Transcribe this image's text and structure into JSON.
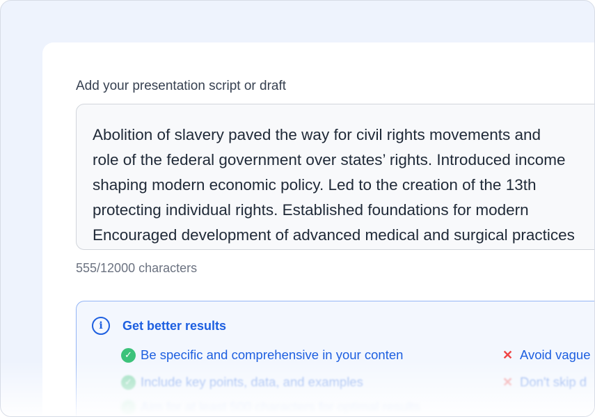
{
  "form": {
    "label": "Add your presentation script or draft",
    "script_value": "Abolition of slavery paved the way for civil rights movements and\nrole of the federal government over states’ rights. Introduced income\nshaping modern economic policy. Led to the creation of the 13th\nprotecting individual rights. Established foundations for modern\nEncouraged development of advanced medical and surgical practices",
    "char_count": "555/12000 characters"
  },
  "tips": {
    "title": "Get better results",
    "icon": "info-icon",
    "do": [
      "Be specific and comprehensive in your conten",
      "Include key points, data, and examples",
      "Aim for at least 500 characters for optimal results"
    ],
    "dont": [
      "Avoid vague",
      "Don't skip d"
    ],
    "colors": {
      "accent": "#1d5fe0",
      "check": "#3cc27a",
      "cross": "#ef4444"
    }
  }
}
